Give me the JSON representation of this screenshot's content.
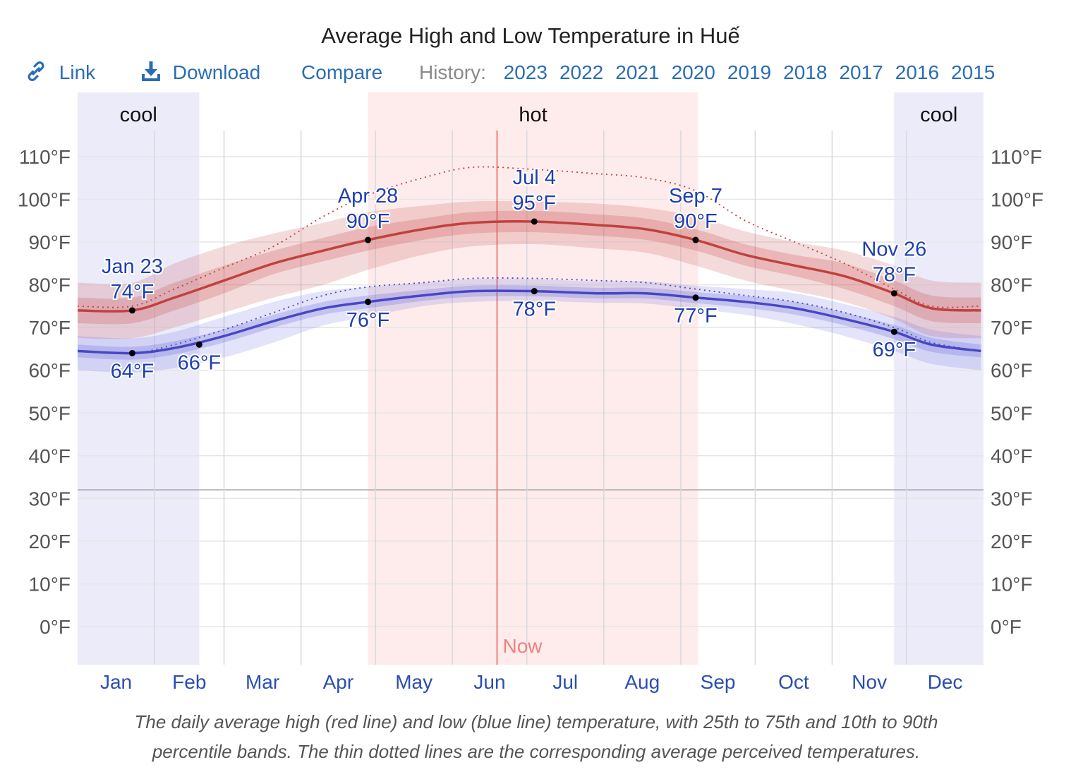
{
  "toolbar": {
    "link_label": "Link",
    "link_icon": "link-icon",
    "download_label": "Download",
    "download_icon": "download-icon",
    "compare_label": "Compare",
    "history_label": "History:",
    "history_years": [
      "2023",
      "2022",
      "2021",
      "2020",
      "2019",
      "2018",
      "2017",
      "2016",
      "2015"
    ],
    "link_color": "#2a6db5"
  },
  "caption": [
    "The daily average high (red line) and low (blue line) temperature, with 25th to 75th and 10th to 90th",
    "percentile bands. The thin dotted lines are the corresponding average perceived temperatures."
  ],
  "chart_data": {
    "type": "line",
    "title": "Average High and Low Temperature in Huế",
    "x_unit": "day of year",
    "months": [
      "Jan",
      "Feb",
      "Mar",
      "Apr",
      "May",
      "Jun",
      "Jul",
      "Aug",
      "Sep",
      "Oct",
      "Nov",
      "Dec"
    ],
    "y_ticks": [
      "0°F",
      "10°F",
      "20°F",
      "30°F",
      "40°F",
      "50°F",
      "60°F",
      "70°F",
      "80°F",
      "90°F",
      "100°F",
      "110°F"
    ],
    "ylim": [
      -9,
      116
    ],
    "freezing_line": 32,
    "grid": true,
    "seasons": [
      {
        "label": "cool",
        "start_day": 1,
        "end_day": 49,
        "color": "#ebebfa"
      },
      {
        "label": "hot",
        "start_day": 118,
        "end_day": 250,
        "color": "#fdeceb"
      },
      {
        "label": "cool",
        "start_day": 330,
        "end_day": 365,
        "color": "#ebebfa"
      }
    ],
    "now": {
      "label": "Now",
      "day": 170,
      "color": "#f08080"
    },
    "days": [
      1,
      23,
      40,
      60,
      80,
      100,
      118,
      140,
      160,
      185,
      210,
      230,
      250,
      270,
      290,
      310,
      330,
      345,
      365
    ],
    "series": [
      {
        "key": "high",
        "color": "#c0413f",
        "avg": [
          74,
          74,
          77,
          81,
          85,
          88,
          90.5,
          93,
          94.5,
          94.8,
          94,
          93,
          90.5,
          87,
          84.5,
          82,
          78,
          74.5,
          74
        ],
        "p25": [
          71,
          71,
          74,
          78,
          82.5,
          85.5,
          88,
          90.5,
          92,
          92.3,
          91.5,
          90.5,
          88,
          84.5,
          82,
          79,
          75,
          71.5,
          71
        ],
        "p75": [
          77,
          77,
          80.5,
          84.5,
          88,
          91,
          93.5,
          95.5,
          97,
          97.3,
          96.5,
          95.5,
          93,
          89.5,
          87,
          85,
          81,
          77.5,
          77
        ],
        "p10": [
          67.5,
          67.5,
          70,
          73.5,
          77,
          80,
          83.5,
          87,
          89,
          89.5,
          88.5,
          87.5,
          84.5,
          81,
          78.5,
          76,
          72,
          68,
          67.5
        ],
        "p90": [
          80.5,
          80.5,
          85,
          89,
          92,
          94.5,
          97,
          98.5,
          99.5,
          99.5,
          99,
          98,
          96,
          92.5,
          90,
          88,
          84.5,
          81,
          80.5
        ],
        "perceived": [
          75,
          75,
          79,
          84,
          89,
          96,
          101,
          105,
          107.5,
          107,
          106,
          105,
          102,
          95,
          90,
          85,
          79,
          75,
          75
        ]
      },
      {
        "key": "low",
        "color": "#4747c4",
        "avg": [
          64.5,
          64,
          65.2,
          68,
          71.5,
          74.5,
          76,
          77.5,
          78.5,
          78.5,
          78,
          78,
          77,
          76,
          74.5,
          72,
          69,
          66,
          64.5
        ],
        "p25": [
          63,
          62.5,
          63.7,
          66.5,
          70,
          73,
          74.5,
          76.2,
          77.2,
          77.3,
          76.8,
          76.8,
          75.7,
          74.6,
          73,
          70.5,
          67.3,
          64.3,
          63
        ],
        "p75": [
          66,
          65.5,
          66.8,
          69.6,
          73,
          76,
          77.5,
          78.8,
          79.8,
          79.8,
          79.3,
          79.3,
          78.3,
          77.4,
          76,
          73.5,
          70.6,
          67.6,
          66
        ],
        "p10": [
          60,
          59.5,
          60.5,
          63,
          66.5,
          70.5,
          72.5,
          75,
          76,
          76.2,
          75.8,
          75.6,
          74.3,
          73,
          70.8,
          68,
          64.5,
          61.5,
          60
        ],
        "p90": [
          68,
          67.5,
          69,
          72.5,
          76,
          78.5,
          79.5,
          80.5,
          81.3,
          81.3,
          80.8,
          80.8,
          79.8,
          79,
          78,
          75.5,
          72.5,
          69.5,
          68
        ],
        "perceived": [
          64.5,
          64,
          66,
          69.5,
          73.5,
          77.5,
          79.5,
          80.5,
          81.5,
          81.5,
          81,
          80.5,
          79,
          77.5,
          76,
          73.5,
          70,
          66.5,
          64.5
        ]
      }
    ],
    "annotations": [
      {
        "series": "high",
        "day": 23,
        "date": "Jan 23",
        "value": "74°F",
        "v": 74,
        "pos": "above"
      },
      {
        "series": "high",
        "day": 118,
        "date": "Apr 28",
        "value": "90°F",
        "v": 90.5,
        "pos": "above"
      },
      {
        "series": "high",
        "day": 185,
        "date": "Jul 4",
        "value": "95°F",
        "v": 94.8,
        "pos": "above"
      },
      {
        "series": "high",
        "day": 250,
        "date": "Sep 7",
        "value": "90°F",
        "v": 90.5,
        "pos": "above"
      },
      {
        "series": "high",
        "day": 330,
        "date": "Nov 26",
        "value": "78°F",
        "v": 78,
        "pos": "above"
      },
      {
        "series": "low",
        "day": 23,
        "value": "64°F",
        "v": 64,
        "pos": "below"
      },
      {
        "series": "low",
        "day": 50,
        "value": "66°F",
        "v": 66,
        "pos": "below"
      },
      {
        "series": "low",
        "day": 118,
        "value": "76°F",
        "v": 76,
        "pos": "below"
      },
      {
        "series": "low",
        "day": 185,
        "value": "78°F",
        "v": 78.5,
        "pos": "below"
      },
      {
        "series": "low",
        "day": 250,
        "value": "77°F",
        "v": 77,
        "pos": "below"
      },
      {
        "series": "low",
        "day": 330,
        "value": "69°F",
        "v": 69,
        "pos": "below"
      }
    ]
  }
}
